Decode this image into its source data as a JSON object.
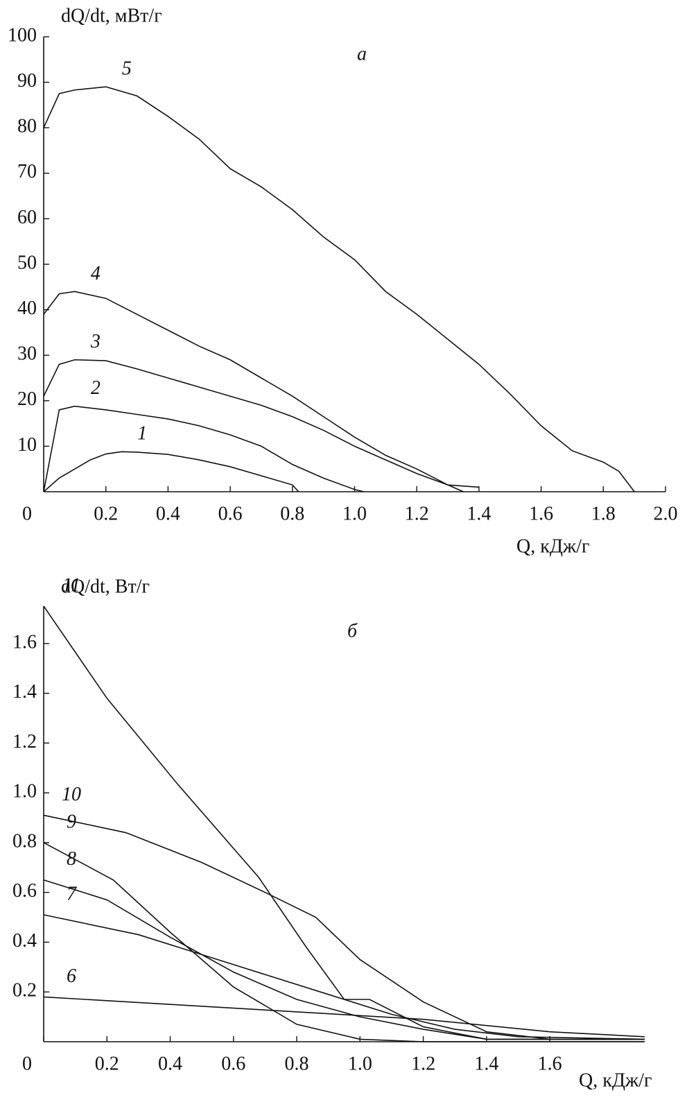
{
  "chart_data": [
    {
      "type": "line",
      "panel": "а",
      "ylabel": "dQ/dt, мВт/г",
      "xlabel": "Q, кДж/г",
      "xlim": [
        0,
        2.0
      ],
      "ylim": [
        0,
        100
      ],
      "xticks": [
        0,
        0.2,
        0.4,
        0.6,
        0.8,
        {
          "value": 1,
          "label": "1.0"
        },
        1.2,
        1.4,
        1.6,
        1.8,
        {
          "value": 2,
          "label": "2.0"
        }
      ],
      "yticks": [
        10,
        20,
        30,
        40,
        50,
        60,
        70,
        80,
        90,
        100
      ],
      "color": "#111111",
      "series": [
        {
          "name": "1",
          "x": [
            0,
            0.05,
            0.1,
            0.15,
            0.2,
            0.25,
            0.3,
            0.4,
            0.5,
            0.6,
            0.7,
            0.8,
            0.82
          ],
          "values": [
            0,
            3,
            5,
            7,
            8.3,
            8.8,
            8.7,
            8.2,
            7,
            5.5,
            3.5,
            1.5,
            0
          ]
        },
        {
          "name": "2",
          "x": [
            0,
            0.05,
            0.1,
            0.2,
            0.3,
            0.4,
            0.5,
            0.6,
            0.7,
            0.8,
            0.9,
            1.0,
            1.03
          ],
          "values": [
            0,
            18,
            18.8,
            18,
            17,
            16,
            14.5,
            12.5,
            10,
            6,
            3,
            0.5,
            0
          ]
        },
        {
          "name": "3",
          "x": [
            0,
            0.05,
            0.1,
            0.2,
            0.3,
            0.4,
            0.5,
            0.6,
            0.7,
            0.8,
            0.9,
            1.0,
            1.1,
            1.2,
            1.3,
            1.4
          ],
          "values": [
            21,
            28,
            29,
            28.8,
            27,
            25,
            23,
            21,
            19,
            16.5,
            13.5,
            10,
            7,
            4,
            1.5,
            1
          ]
        },
        {
          "name": "4",
          "x": [
            0,
            0.05,
            0.1,
            0.2,
            0.3,
            0.4,
            0.5,
            0.6,
            0.7,
            0.8,
            0.9,
            1.0,
            1.1,
            1.2,
            1.3,
            1.35
          ],
          "values": [
            39,
            43.5,
            44,
            42.5,
            39,
            35.5,
            32,
            29,
            25,
            21,
            16.5,
            12,
            8,
            5,
            1.5,
            0
          ]
        },
        {
          "name": "5",
          "x": [
            0,
            0.05,
            0.1,
            0.2,
            0.3,
            0.4,
            0.5,
            0.6,
            0.7,
            0.8,
            0.9,
            1.0,
            1.1,
            1.2,
            1.3,
            1.4,
            1.5,
            1.6,
            1.7,
            1.8,
            1.85,
            1.9
          ],
          "values": [
            80,
            87.5,
            88.3,
            89,
            87,
            82.5,
            77.5,
            71,
            67,
            62,
            56,
            51,
            44,
            39,
            33.5,
            28,
            21.5,
            14.5,
            9,
            6.5,
            4.5,
            0
          ]
        }
      ]
    },
    {
      "type": "line",
      "panel": "б",
      "ylabel": "dQ/dt, Вт/г",
      "xlabel": "Q, кДж/г",
      "xlim": [
        0,
        1.9
      ],
      "ylim": [
        0,
        1.75
      ],
      "xticks": [
        0,
        0.2,
        0.4,
        0.6,
        0.8,
        {
          "value": 1,
          "label": "1.0"
        },
        1.2,
        1.4,
        1.6
      ],
      "yticks": [
        0.2,
        0.4,
        0.6,
        0.8,
        {
          "value": 1,
          "label": "1.0"
        },
        1.2,
        1.4,
        1.6
      ],
      "color": "#111111",
      "series": [
        {
          "name": "6",
          "x": [
            0,
            0.4,
            0.8,
            1.2,
            1.6,
            1.9
          ],
          "values": [
            0.18,
            0.15,
            0.12,
            0.09,
            0.04,
            0.02
          ]
        },
        {
          "name": "7",
          "x": [
            0,
            0.3,
            0.5,
            0.7,
            0.9,
            1.1,
            1.3,
            1.5,
            1.9
          ],
          "values": [
            0.51,
            0.43,
            0.35,
            0.27,
            0.19,
            0.11,
            0.05,
            0.02,
            0.01
          ]
        },
        {
          "name": "8",
          "x": [
            0,
            0.2,
            0.4,
            0.6,
            0.8,
            1.0,
            1.2,
            1.4,
            1.9
          ],
          "values": [
            0.65,
            0.57,
            0.42,
            0.28,
            0.17,
            0.1,
            0.05,
            0.01,
            0.01
          ]
        },
        {
          "name": "9",
          "x": [
            0,
            0.22,
            0.4,
            0.6,
            0.8,
            1.0,
            1.2,
            1.9
          ],
          "values": [
            0.8,
            0.65,
            0.44,
            0.22,
            0.07,
            0.01,
            0,
            0
          ]
        },
        {
          "name": "10",
          "x": [
            0,
            0.26,
            0.5,
            0.7,
            0.86,
            1.0,
            1.2,
            1.4,
            1.6,
            1.9
          ],
          "values": [
            0.91,
            0.84,
            0.72,
            0.6,
            0.5,
            0.33,
            0.16,
            0.04,
            0.01,
            0.01
          ]
        },
        {
          "name": "11",
          "x": [
            0,
            0.2,
            0.42,
            0.68,
            0.83,
            0.95,
            1.03,
            1.2,
            1.4,
            1.9
          ],
          "values": [
            1.75,
            1.38,
            1.04,
            0.66,
            0.38,
            0.17,
            0.17,
            0.06,
            0.01,
            0.01
          ]
        }
      ]
    }
  ]
}
